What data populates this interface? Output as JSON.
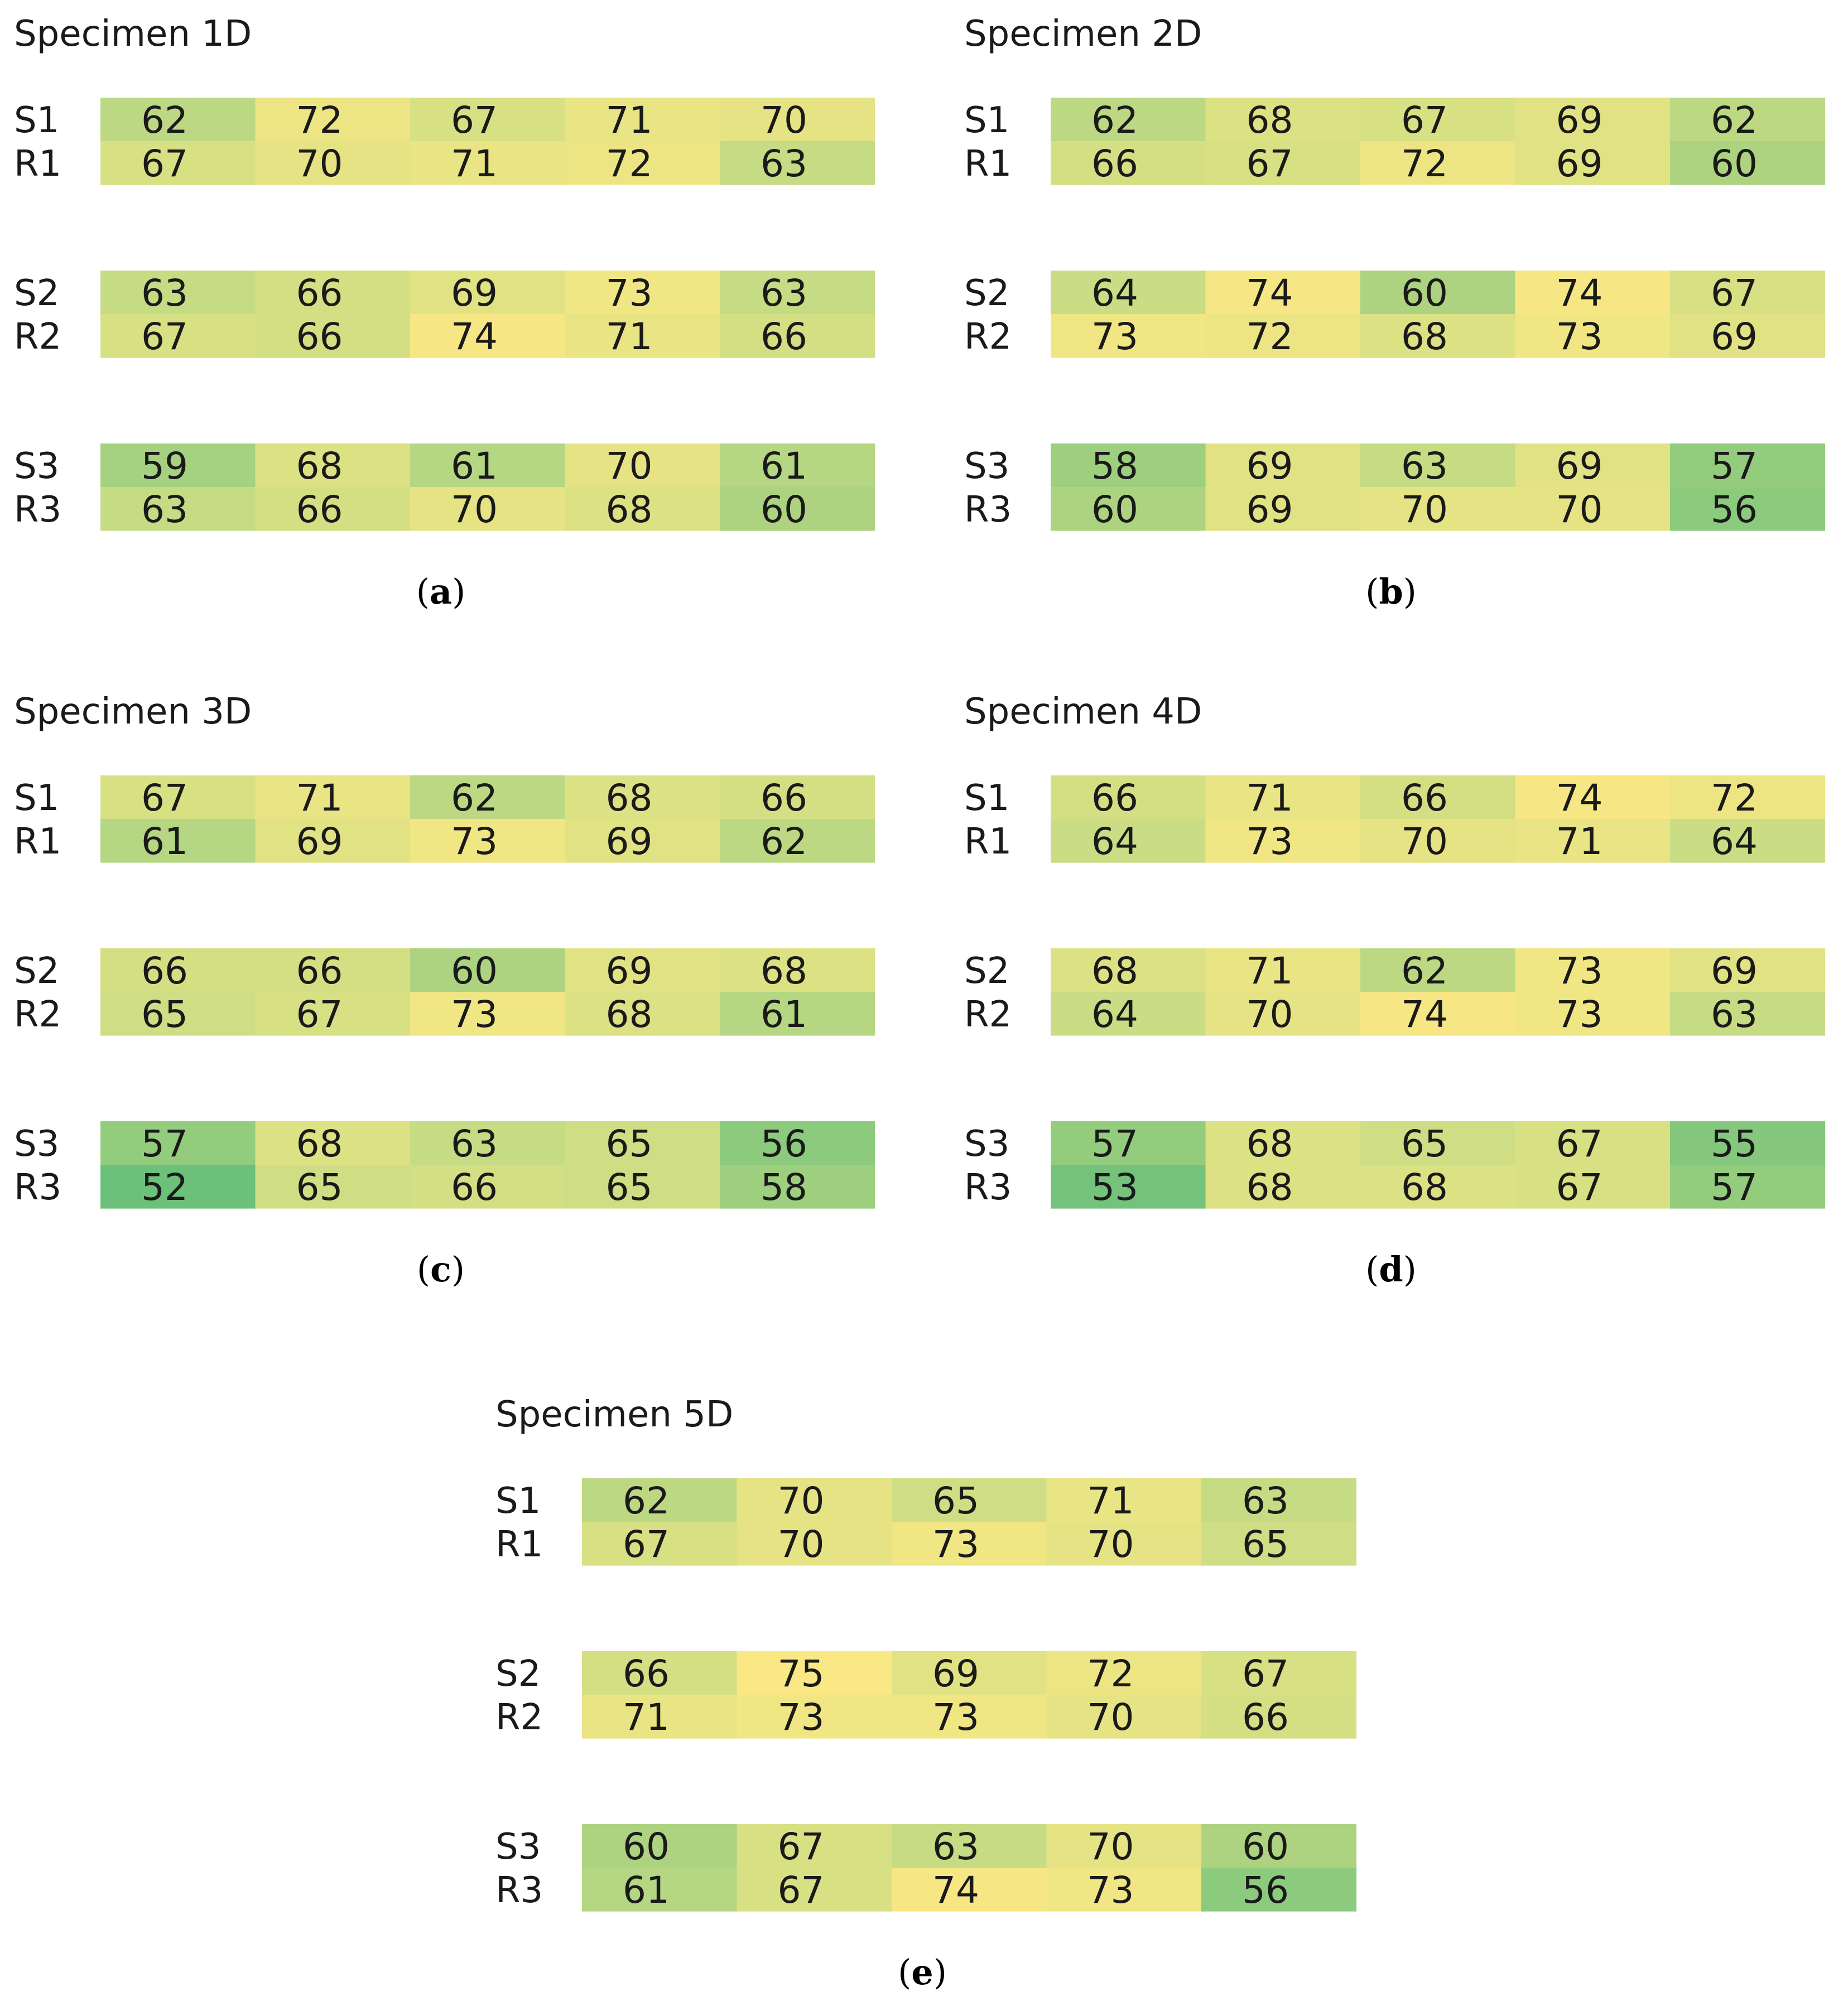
{
  "chart_data": [
    {
      "type": "heatmap",
      "title": "Specimen 1D",
      "caption": "a",
      "groups": [
        {
          "rows": [
            {
              "label": "S1",
              "values": [
                62,
                72,
                67,
                71,
                70
              ]
            },
            {
              "label": "R1",
              "values": [
                67,
                70,
                71,
                72,
                63
              ]
            }
          ]
        },
        {
          "rows": [
            {
              "label": "S2",
              "values": [
                63,
                66,
                69,
                73,
                63
              ]
            },
            {
              "label": "R2",
              "values": [
                67,
                66,
                74,
                71,
                66
              ]
            }
          ]
        },
        {
          "rows": [
            {
              "label": "S3",
              "values": [
                59,
                68,
                61,
                70,
                61
              ]
            },
            {
              "label": "R3",
              "values": [
                63,
                66,
                70,
                68,
                60
              ]
            }
          ]
        }
      ]
    },
    {
      "type": "heatmap",
      "title": "Specimen 2D",
      "caption": "b",
      "groups": [
        {
          "rows": [
            {
              "label": "S1",
              "values": [
                62,
                68,
                67,
                69,
                62
              ]
            },
            {
              "label": "R1",
              "values": [
                66,
                67,
                72,
                69,
                60
              ]
            }
          ]
        },
        {
          "rows": [
            {
              "label": "S2",
              "values": [
                64,
                74,
                60,
                74,
                67
              ]
            },
            {
              "label": "R2",
              "values": [
                73,
                72,
                68,
                73,
                69
              ]
            }
          ]
        },
        {
          "rows": [
            {
              "label": "S3",
              "values": [
                58,
                69,
                63,
                69,
                57
              ]
            },
            {
              "label": "R3",
              "values": [
                60,
                69,
                70,
                70,
                56
              ]
            }
          ]
        }
      ]
    },
    {
      "type": "heatmap",
      "title": "Specimen 3D",
      "caption": "c",
      "groups": [
        {
          "rows": [
            {
              "label": "S1",
              "values": [
                67,
                71,
                62,
                68,
                66
              ]
            },
            {
              "label": "R1",
              "values": [
                61,
                69,
                73,
                69,
                62
              ]
            }
          ]
        },
        {
          "rows": [
            {
              "label": "S2",
              "values": [
                66,
                66,
                60,
                69,
                68
              ]
            },
            {
              "label": "R2",
              "values": [
                65,
                67,
                73,
                68,
                61
              ]
            }
          ]
        },
        {
          "rows": [
            {
              "label": "S3",
              "values": [
                57,
                68,
                63,
                65,
                56
              ]
            },
            {
              "label": "R3",
              "values": [
                52,
                65,
                66,
                65,
                58
              ]
            }
          ]
        }
      ]
    },
    {
      "type": "heatmap",
      "title": "Specimen 4D",
      "caption": "d",
      "groups": [
        {
          "rows": [
            {
              "label": "S1",
              "values": [
                66,
                71,
                66,
                74,
                72
              ]
            },
            {
              "label": "R1",
              "values": [
                64,
                73,
                70,
                71,
                64
              ]
            }
          ]
        },
        {
          "rows": [
            {
              "label": "S2",
              "values": [
                68,
                71,
                62,
                73,
                69
              ]
            },
            {
              "label": "R2",
              "values": [
                64,
                70,
                74,
                73,
                63
              ]
            }
          ]
        },
        {
          "rows": [
            {
              "label": "S3",
              "values": [
                57,
                68,
                65,
                67,
                55
              ]
            },
            {
              "label": "R3",
              "values": [
                53,
                68,
                68,
                67,
                57
              ]
            }
          ]
        }
      ]
    },
    {
      "type": "heatmap",
      "title": "Specimen 5D",
      "caption": "e",
      "groups": [
        {
          "rows": [
            {
              "label": "S1",
              "values": [
                62,
                70,
                65,
                71,
                63
              ]
            },
            {
              "label": "R1",
              "values": [
                67,
                70,
                73,
                70,
                65
              ]
            }
          ]
        },
        {
          "rows": [
            {
              "label": "S2",
              "values": [
                66,
                75,
                69,
                72,
                67
              ]
            },
            {
              "label": "R2",
              "values": [
                71,
                73,
                73,
                70,
                66
              ]
            }
          ]
        },
        {
          "rows": [
            {
              "label": "S3",
              "values": [
                60,
                67,
                63,
                70,
                60
              ]
            },
            {
              "label": "R3",
              "values": [
                61,
                67,
                74,
                73,
                56
              ]
            }
          ]
        }
      ]
    }
  ],
  "colormap": {
    "low_value": 52,
    "high_value": 75,
    "low_color": "#6cc07a",
    "mid_color": "#c9dc84",
    "high_color": "#fae884"
  }
}
